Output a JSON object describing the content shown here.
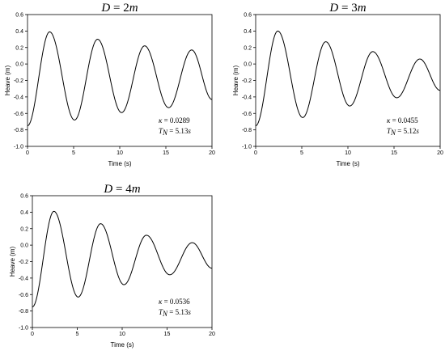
{
  "chart_data": [
    {
      "type": "line",
      "title": {
        "var": "D",
        "eq": " = ",
        "val": "2",
        "unit": "m"
      },
      "xlabel": "Time (s)",
      "ylabel": "Heave (m)",
      "xlim": [
        0,
        20
      ],
      "ylim": [
        -1.0,
        0.6
      ],
      "xticks": [
        "0",
        "5",
        "10",
        "15",
        "20"
      ],
      "yticks": [
        "-1.0",
        "-0.8",
        "-0.6",
        "-0.4",
        "-0.2",
        "0.0",
        "0.2",
        "0.4",
        "0.6"
      ],
      "annotation": {
        "kappa_sym": "κ",
        "kappa_eq": " = ",
        "kappa_val": "0.0289",
        "t_sym": "T",
        "t_sub": "N",
        "t_eq": " = ",
        "t_val": "5.13",
        "t_unit": "s"
      },
      "grid": false,
      "series": [
        {
          "x": [
            0,
            2.4,
            5.1,
            7.6,
            10.2,
            12.7,
            15.3,
            17.8,
            20
          ],
          "y": [
            -0.75,
            0.39,
            -0.68,
            0.3,
            -0.59,
            0.22,
            -0.53,
            0.17,
            -0.43
          ]
        }
      ]
    },
    {
      "type": "line",
      "title": {
        "var": "D",
        "eq": " = ",
        "val": "3",
        "unit": "m"
      },
      "xlabel": "Time (s)",
      "ylabel": "Heave (m)",
      "xlim": [
        0,
        20
      ],
      "ylim": [
        -1.0,
        0.6
      ],
      "xticks": [
        "0",
        "5",
        "10",
        "15",
        "20"
      ],
      "yticks": [
        "-1.0",
        "-0.8",
        "-0.6",
        "-0.4",
        "-0.2",
        "0.0",
        "0.2",
        "0.4",
        "0.6"
      ],
      "annotation": {
        "kappa_sym": "κ",
        "kappa_eq": " = ",
        "kappa_val": "0.0455",
        "t_sym": "T",
        "t_sub": "N",
        "t_eq": " = ",
        "t_val": "5.12",
        "t_unit": "s"
      },
      "grid": false,
      "series": [
        {
          "x": [
            0,
            2.4,
            5.1,
            7.6,
            10.2,
            12.7,
            15.3,
            17.8,
            20
          ],
          "y": [
            -0.75,
            0.4,
            -0.65,
            0.27,
            -0.51,
            0.15,
            -0.41,
            0.06,
            -0.32
          ]
        }
      ]
    },
    {
      "type": "line",
      "title": {
        "var": "D",
        "eq": " = ",
        "val": "4",
        "unit": "m"
      },
      "xlabel": "Time (s)",
      "ylabel": "Heave (m)",
      "xlim": [
        0,
        20
      ],
      "ylim": [
        -1.0,
        0.6
      ],
      "xticks": [
        "0",
        "5",
        "10",
        "15",
        "20"
      ],
      "yticks": [
        "-1.0",
        "-0.8",
        "-0.6",
        "-0.4",
        "-0.2",
        "0.0",
        "0.2",
        "0.4",
        "0.6"
      ],
      "annotation": {
        "kappa_sym": "κ",
        "kappa_eq": " = ",
        "kappa_val": "0.0536",
        "t_sym": "T",
        "t_sub": "N",
        "t_eq": " = ",
        "t_val": "5.13",
        "t_unit": "s"
      },
      "grid": false,
      "series": [
        {
          "x": [
            0,
            2.4,
            5.1,
            7.6,
            10.2,
            12.7,
            15.3,
            17.8,
            20
          ],
          "y": [
            -0.75,
            0.41,
            -0.63,
            0.26,
            -0.48,
            0.12,
            -0.36,
            0.03,
            -0.28
          ]
        }
      ]
    }
  ]
}
